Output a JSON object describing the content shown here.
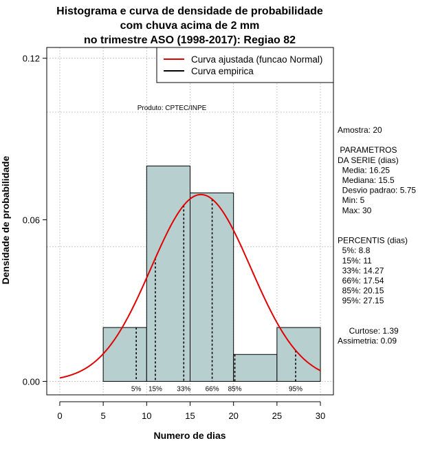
{
  "chart_data": {
    "type": "bar",
    "title_lines": [
      "Histograma e curva de densidade de probabilidade",
      "com chuva acima de 2 mm",
      "no trimestre ASO (1998-2017): Regiao 82"
    ],
    "xlabel": "Numero de dias",
    "ylabel": "Densidade de probabilidade",
    "xlim": [
      -1.5,
      31.5
    ],
    "ylim": [
      -0.005,
      0.124
    ],
    "x_ticks": [
      0,
      5,
      10,
      15,
      20,
      25,
      30
    ],
    "x_tick_labels": [
      "0",
      "5",
      "10",
      "15",
      "20",
      "25",
      "30"
    ],
    "y_ticks": [
      0.0,
      0.06,
      0.12
    ],
    "y_tick_labels": [
      "0.00",
      "0.06",
      "0.12"
    ],
    "grid_x": [
      0,
      5,
      10,
      15,
      20,
      25,
      30
    ],
    "grid_y": [
      0.0,
      0.05,
      0.1,
      0.12
    ],
    "bins": [
      {
        "from": 5,
        "to": 10,
        "density": 0.02
      },
      {
        "from": 10,
        "to": 15,
        "density": 0.08
      },
      {
        "from": 15,
        "to": 20,
        "density": 0.07
      },
      {
        "from": 20,
        "to": 25,
        "density": 0.01
      },
      {
        "from": 25,
        "to": 30,
        "density": 0.02
      }
    ],
    "bar_color": "#b7cfcf",
    "curve": {
      "name": "Curva ajustada (funcao Normal)",
      "color": "#e00000",
      "mean": 16.25,
      "sd": 5.75,
      "x_from": 0,
      "x_to": 30
    },
    "legend": [
      {
        "label": "Curva ajustada (funcao Normal)",
        "color": "#e00000"
      },
      {
        "label": "Curva empirica",
        "color": "#000000"
      }
    ],
    "legend_position": "top-right",
    "credit": "Produto: CPTEC/INPE",
    "percentiles": [
      {
        "label": "5%",
        "value": 8.8
      },
      {
        "label": "15%",
        "value": 11
      },
      {
        "label": "33%",
        "value": 14.27
      },
      {
        "label": "66%",
        "value": 17.54
      },
      {
        "label": "85%",
        "value": 20.15
      },
      {
        "label": "95%",
        "value": 27.15
      }
    ],
    "side_panel": [
      "Amostra: 20",
      "",
      " PARAMETROS",
      "DA SERIE (dias)",
      "  Media: 16.25",
      "  Mediana: 15.5",
      "  Desvio padrao: 5.75",
      "  Min: 5",
      "  Max: 30",
      "",
      "",
      "PERCENTIS (dias)",
      "  5%: 8.8",
      "  15%: 11",
      "  33%: 14.27",
      "  66%: 17.54",
      "  85%: 20.15",
      "  95%: 27.15",
      "",
      "",
      "     Curtose: 1.39",
      "Assimetria: 0.09"
    ]
  }
}
